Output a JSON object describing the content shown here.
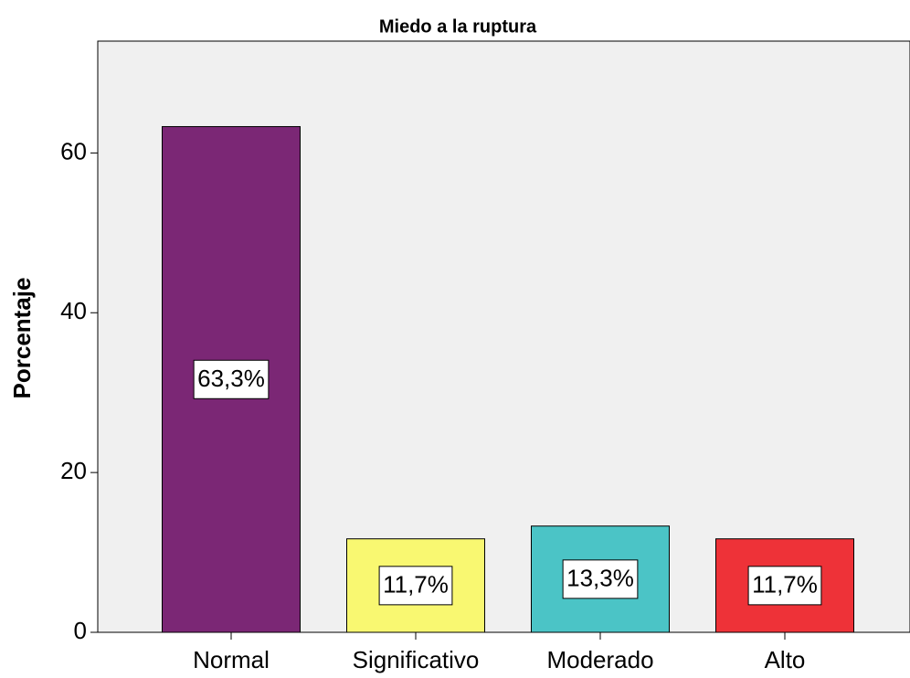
{
  "chart_data": {
    "type": "bar",
    "title": "Miedo a la ruptura",
    "y_label": "Porcentaje",
    "categories": [
      "Normal",
      "Significativo",
      "Moderado",
      "Alto"
    ],
    "values": [
      63.3,
      11.7,
      13.3,
      11.7
    ],
    "value_labels": [
      "63,3%",
      "11,7%",
      "13,3%",
      "11,7%"
    ],
    "colors": [
      "#7b2775",
      "#f9f871",
      "#4bc4c6",
      "#ee3238"
    ],
    "ylim": [
      0,
      74
    ],
    "yticks": [
      0,
      20,
      40,
      60
    ]
  }
}
